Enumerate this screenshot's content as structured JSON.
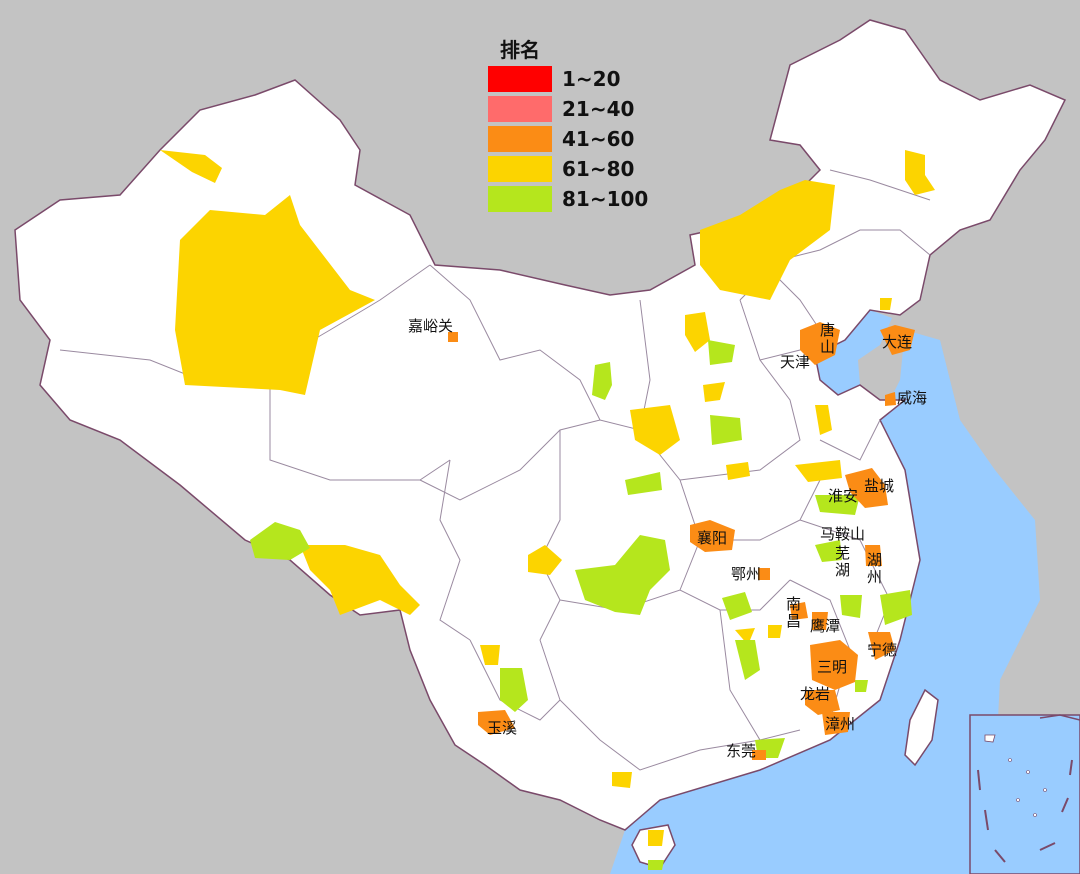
{
  "legend": {
    "title": "排名",
    "items": [
      {
        "label": "1~20",
        "color": "#ff0000"
      },
      {
        "label": "21~40",
        "color": "#ff6b6b"
      },
      {
        "label": "41~60",
        "color": "#fb8c15"
      },
      {
        "label": "61~80",
        "color": "#fcd400"
      },
      {
        "label": "81~100",
        "color": "#b5e61d"
      }
    ]
  },
  "colors": {
    "land": "#ffffff",
    "sea": "#99ccff",
    "background": "#c3c3c3",
    "border": "#7a4a6a"
  },
  "cities": {
    "jiayuguan": "嘉峪关",
    "tangshan": "唐山",
    "tianjin": "天津",
    "dalian": "大连",
    "weihai": "威海",
    "yancheng": "盐城",
    "huaian": "淮安",
    "xiangyang": "襄阳",
    "maanshan": "马鞍山",
    "wuhu": "芜湖",
    "huzhou": "湖州",
    "ezhou": "鄂州",
    "nanchang": "南昌",
    "yingtan": "鹰潭",
    "ningde": "宁德",
    "sanming": "三明",
    "longyan": "龙岩",
    "zhangzhou": "漳州",
    "dongguan": "东莞",
    "yuxi": "玉溪"
  }
}
